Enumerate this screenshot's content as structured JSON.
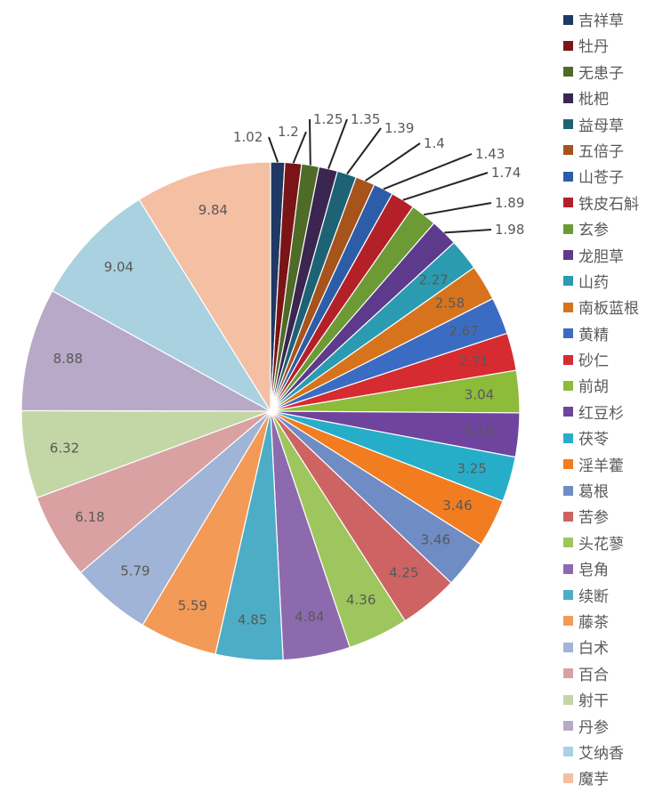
{
  "chart_data": {
    "type": "pie",
    "legend_position": "right",
    "labels": [
      "吉祥草",
      "牡丹",
      "无患子",
      "枇杷",
      "益母草",
      "五倍子",
      "山苍子",
      "铁皮石斛",
      "玄参",
      "龙胆草",
      "山药",
      "南板蓝根",
      "黄精",
      "砂仁",
      "前胡",
      "红豆杉",
      "茯苓",
      "淫羊藿",
      "葛根",
      "苦参",
      "头花蓼",
      "皂角",
      "续断",
      "藤茶",
      "白术",
      "百合",
      "射干",
      "丹参",
      "艾纳香",
      "魔芋"
    ],
    "values": [
      1.02,
      1.2,
      1.25,
      1.35,
      1.39,
      1.4,
      1.43,
      1.74,
      1.89,
      1.98,
      2.27,
      2.58,
      2.67,
      2.71,
      3.04,
      3.16,
      3.25,
      3.46,
      3.46,
      4.25,
      4.36,
      4.84,
      4.85,
      5.59,
      5.79,
      6.18,
      6.32,
      8.88,
      9.04,
      9.84
    ],
    "value_labels": [
      "1.02",
      "1.2",
      "1.25",
      "1.35",
      "1.39",
      "1.4",
      "1.43",
      "1.74",
      "1.89",
      "1.98",
      "2.27",
      "2.58",
      "2.67",
      "2.71",
      "3.04",
      "3.16",
      "3.25",
      "3.46",
      "3.46",
      "4.25",
      "4.36",
      "4.84",
      "4.85",
      "5.59",
      "5.79",
      "6.18",
      "6.32",
      "8.88",
      "9.04",
      "9.84"
    ],
    "colors": [
      "#1F3864",
      "#7B1416",
      "#4E6B28",
      "#3B2551",
      "#1E6275",
      "#A6531C",
      "#2E5DA8",
      "#B42028",
      "#6C9B35",
      "#5D3A8C",
      "#2A9BB0",
      "#D8731D",
      "#3B6CC4",
      "#D62B30",
      "#8DBB3A",
      "#6F449E",
      "#26AEC9",
      "#F17D20",
      "#6F8CC5",
      "#CE6363",
      "#9FC65E",
      "#8D6AAE",
      "#4EADC6",
      "#F39A56",
      "#9FB4D6",
      "#D9A1A2",
      "#C3D6A5",
      "#B8A9C8",
      "#A9D1E0",
      "#F5BFA4"
    ]
  }
}
